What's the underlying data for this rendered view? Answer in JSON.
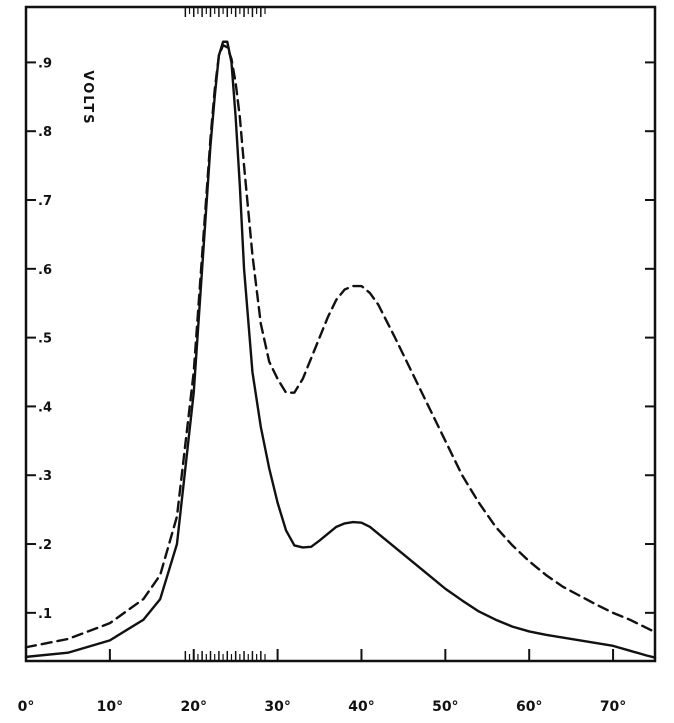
{
  "chart_data": {
    "type": "line",
    "title": "",
    "xlabel": "",
    "ylabel": "VOLTS",
    "xlim": [
      0,
      75
    ],
    "ylim": [
      0.03,
      0.95
    ],
    "grid": false,
    "legend": "none",
    "x_ticks": [
      0,
      10,
      20,
      30,
      40,
      50,
      60,
      70
    ],
    "x_tick_labels": [
      "0°",
      "10°",
      "20°",
      "30°",
      "40°",
      "50°",
      "60°",
      "70°"
    ],
    "y_ticks": [
      0.1,
      0.2,
      0.3,
      0.4,
      0.5,
      0.6,
      0.7,
      0.8,
      0.9
    ],
    "y_tick_labels": [
      ".1",
      ".2",
      ".3",
      ".4",
      ".5",
      ".6",
      ".7",
      ".8",
      ".9"
    ],
    "minor_x_ticks": [
      19,
      20,
      21,
      22,
      23,
      24,
      25,
      26,
      27,
      28
    ],
    "series": [
      {
        "style": "solid",
        "color": "#111111",
        "x": [
          0,
          5,
          10,
          14,
          16,
          18,
          20,
          21,
          22,
          22.5,
          23,
          23.5,
          24,
          24.5,
          25,
          25.5,
          26,
          27,
          28,
          29,
          30,
          31,
          32,
          33,
          34,
          35,
          36,
          37,
          38,
          39,
          40,
          41,
          42,
          44,
          46,
          48,
          50,
          52,
          54,
          56,
          58,
          60,
          62,
          64,
          66,
          68,
          70,
          72,
          74,
          75
        ],
        "y": [
          0.036,
          0.042,
          0.06,
          0.09,
          0.12,
          0.2,
          0.42,
          0.6,
          0.78,
          0.85,
          0.91,
          0.93,
          0.93,
          0.9,
          0.82,
          0.72,
          0.6,
          0.45,
          0.37,
          0.31,
          0.26,
          0.22,
          0.198,
          0.195,
          0.196,
          0.205,
          0.215,
          0.225,
          0.23,
          0.232,
          0.231,
          0.225,
          0.215,
          0.195,
          0.175,
          0.155,
          0.135,
          0.118,
          0.102,
          0.09,
          0.08,
          0.073,
          0.068,
          0.064,
          0.06,
          0.056,
          0.052,
          0.045,
          0.038,
          0.035
        ]
      },
      {
        "style": "dashed",
        "color": "#111111",
        "x": [
          0,
          5,
          10,
          14,
          16,
          18,
          20,
          21,
          22,
          22.5,
          23,
          23.5,
          24,
          24.5,
          25,
          25.5,
          26,
          27,
          28,
          29,
          30,
          31,
          32,
          33,
          34,
          35,
          36,
          37,
          38,
          39,
          40,
          41,
          42,
          44,
          46,
          48,
          50,
          52,
          54,
          56,
          58,
          60,
          62,
          64,
          66,
          68,
          70,
          72,
          74,
          75
        ],
        "y": [
          0.05,
          0.062,
          0.085,
          0.12,
          0.155,
          0.24,
          0.45,
          0.62,
          0.79,
          0.86,
          0.91,
          0.925,
          0.922,
          0.905,
          0.87,
          0.82,
          0.75,
          0.62,
          0.52,
          0.465,
          0.44,
          0.42,
          0.42,
          0.44,
          0.47,
          0.5,
          0.53,
          0.555,
          0.57,
          0.575,
          0.575,
          0.565,
          0.548,
          0.5,
          0.45,
          0.4,
          0.35,
          0.3,
          0.26,
          0.225,
          0.198,
          0.175,
          0.155,
          0.138,
          0.125,
          0.112,
          0.1,
          0.09,
          0.078,
          0.072
        ]
      }
    ]
  }
}
